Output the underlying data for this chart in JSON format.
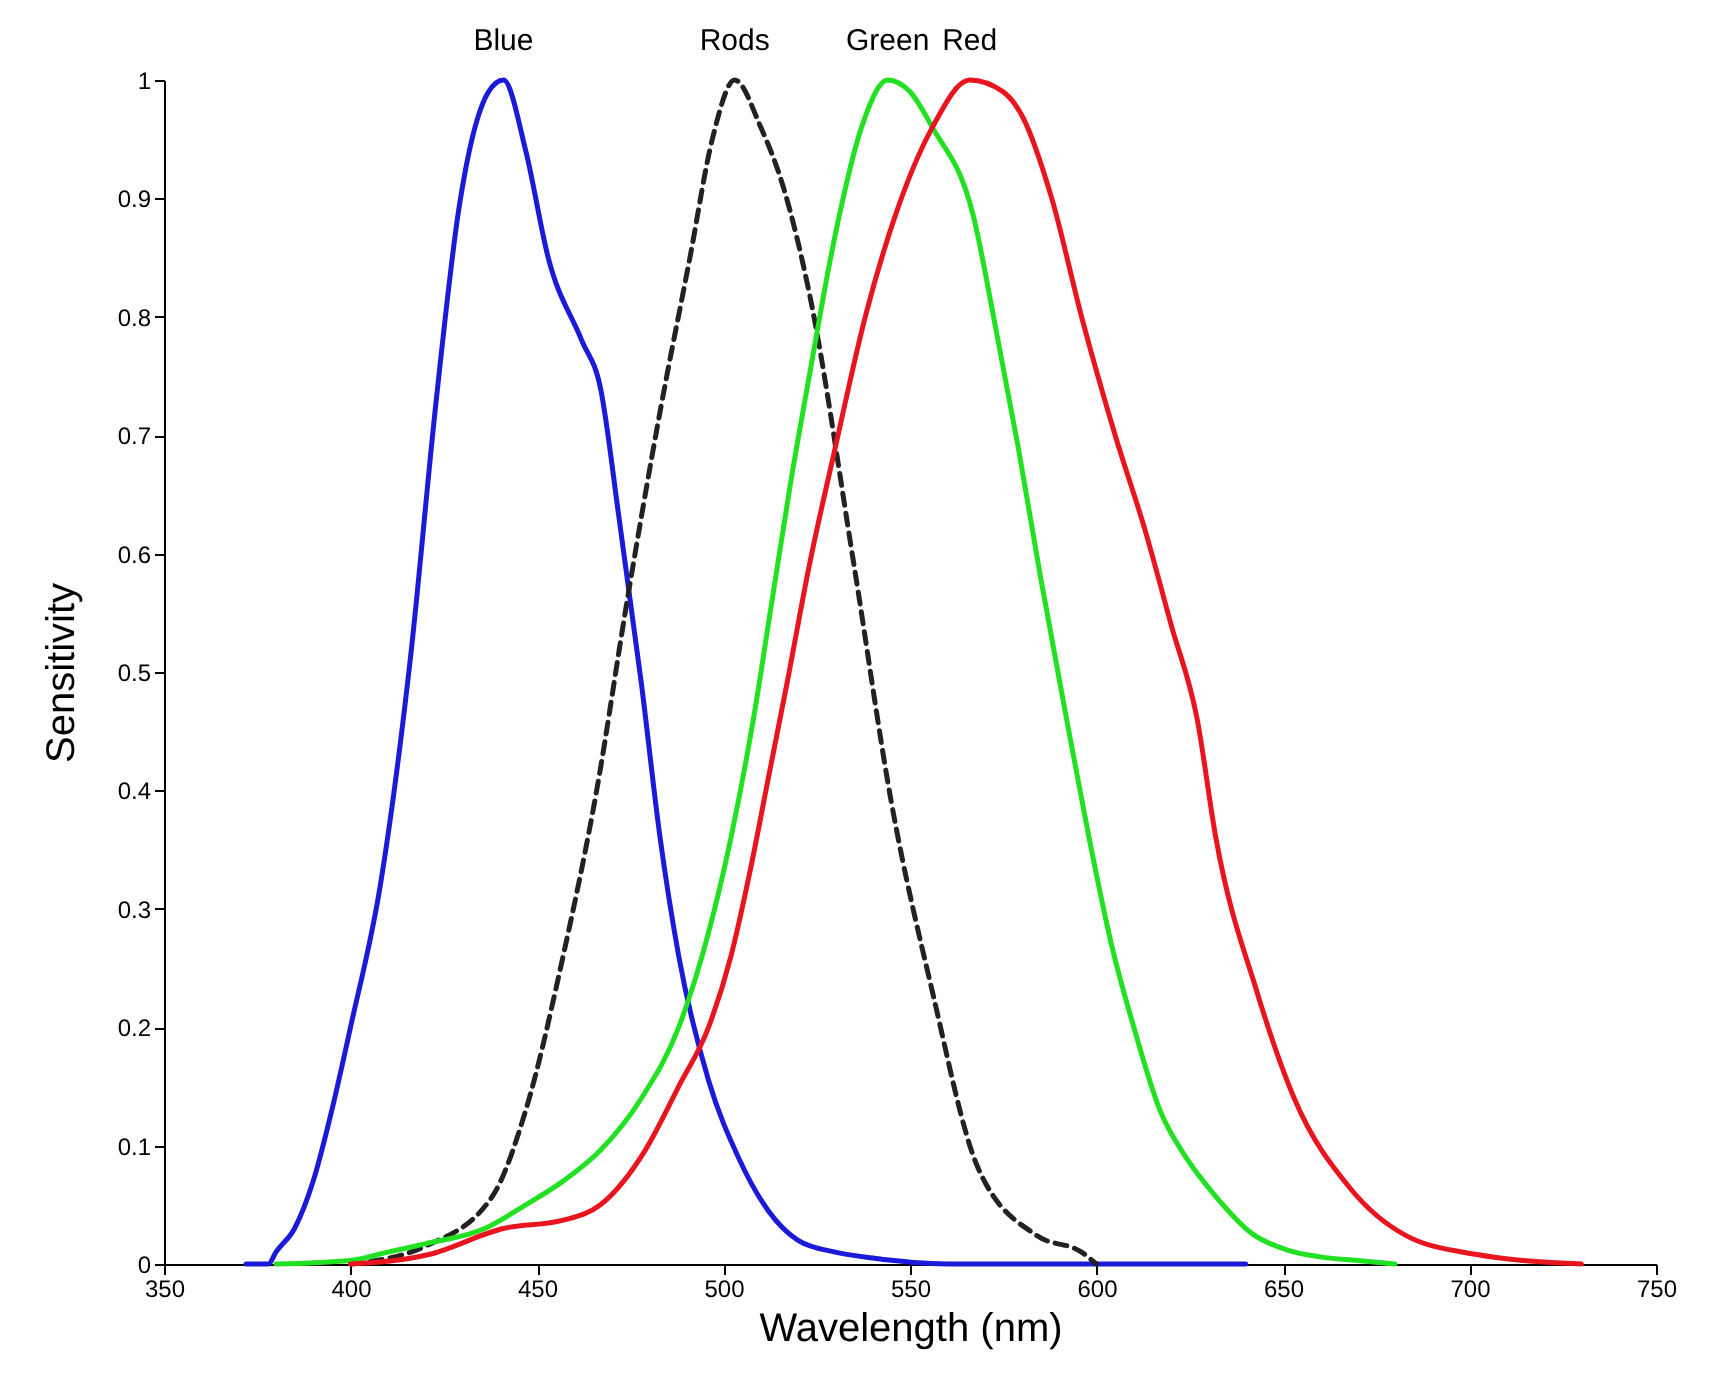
{
  "chart_data": {
    "type": "line",
    "xlabel": "Wavelength (nm)",
    "ylabel": "Sensitivity",
    "xlim": [
      350,
      750
    ],
    "xticks": [
      350,
      400,
      450,
      500,
      550,
      600,
      650,
      700,
      750
    ],
    "ylim": [
      0,
      1
    ],
    "yticks": [
      0,
      0.1,
      0.2,
      0.3,
      0.4,
      0.5,
      0.6,
      0.7,
      0.8,
      0.9,
      1
    ],
    "grid": false,
    "legend": false,
    "marker": "none",
    "series": [
      {
        "name": "Blue",
        "color": "#1a1ad8",
        "line_style": "solid",
        "x": [
          372,
          378,
          380,
          385,
          390,
          395,
          400,
          408,
          416,
          423,
          429,
          437,
          441,
          447,
          453,
          462,
          467,
          472,
          478,
          483,
          488,
          496,
          504,
          512,
          520,
          530,
          540,
          560,
          600,
          640
        ],
        "values": [
          0,
          0,
          0.01,
          0.03,
          0.07,
          0.13,
          0.2,
          0.32,
          0.51,
          0.73,
          0.89,
          0.99,
          1,
          0.94,
          0.85,
          0.78,
          0.74,
          0.63,
          0.49,
          0.36,
          0.26,
          0.155,
          0.09,
          0.045,
          0.02,
          0.01,
          0.005,
          0,
          0,
          0
        ]
      },
      {
        "name": "Rods",
        "color": "#222222",
        "line_style": "dashed",
        "x": [
          400,
          420,
          438,
          447,
          457,
          466,
          474,
          483,
          491,
          497,
          503,
          510,
          516,
          523,
          535,
          545,
          556,
          568,
          584,
          596,
          600
        ],
        "values": [
          0,
          0.015,
          0.057,
          0.13,
          0.26,
          0.4,
          0.557,
          0.72,
          0.85,
          0.95,
          1,
          0.96,
          0.91,
          0.82,
          0.59,
          0.39,
          0.23,
          0.083,
          0.024,
          0.01,
          0
        ]
      },
      {
        "name": "Green",
        "color": "#22e022",
        "line_style": "solid",
        "x": [
          380,
          400,
          410,
          420,
          436,
          447,
          457,
          467,
          478,
          488,
          496,
          502,
          508,
          513,
          518,
          523,
          530,
          537,
          544,
          550,
          556,
          567,
          573,
          579,
          585,
          592,
          598,
          604,
          610,
          617,
          624,
          632,
          642,
          651,
          660,
          670,
          680
        ],
        "values": [
          0,
          0.003,
          0.01,
          0.017,
          0.03,
          0.05,
          0.07,
          0.096,
          0.14,
          0.2,
          0.28,
          0.36,
          0.46,
          0.56,
          0.66,
          0.75,
          0.87,
          0.96,
          1,
          0.99,
          0.96,
          0.885,
          0.79,
          0.69,
          0.58,
          0.46,
          0.36,
          0.27,
          0.2,
          0.13,
          0.09,
          0.057,
          0.025,
          0.012,
          0.006,
          0.003,
          0
        ]
      },
      {
        "name": "Red",
        "color": "#e8141e",
        "line_style": "solid",
        "x": [
          400,
          421,
          441,
          457,
          467,
          479,
          488,
          496,
          502,
          507,
          512,
          517,
          523,
          530,
          538,
          546,
          556,
          566,
          575,
          580,
          588,
          596,
          605,
          613,
          620,
          627,
          632,
          643,
          653,
          668,
          683,
          702,
          730
        ],
        "values": [
          0,
          0.008,
          0.03,
          0.037,
          0.05,
          0.096,
          0.15,
          0.2,
          0.26,
          0.33,
          0.41,
          0.49,
          0.59,
          0.69,
          0.8,
          0.885,
          0.96,
          1,
          0.99,
          0.97,
          0.9,
          0.8,
          0.7,
          0.62,
          0.54,
          0.46,
          0.36,
          0.23,
          0.14,
          0.064,
          0.024,
          0.008,
          0
        ]
      }
    ]
  }
}
